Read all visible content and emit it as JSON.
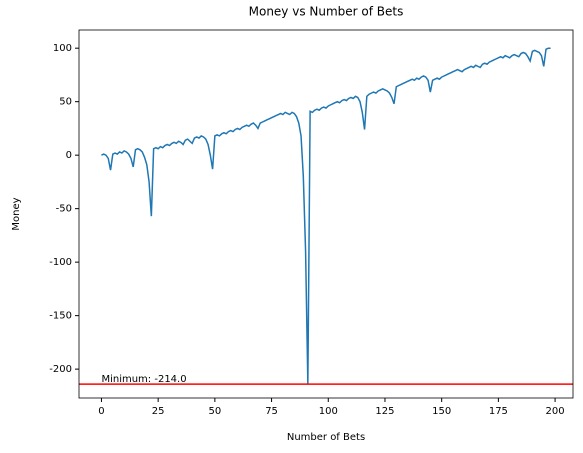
{
  "chart_data": {
    "type": "line",
    "title": "Money vs Number of Bets",
    "xlabel": "Number of Bets",
    "ylabel": "Money",
    "x": [
      0,
      1,
      2,
      3,
      4,
      5,
      6,
      7,
      8,
      9,
      10,
      11,
      12,
      13,
      14,
      15,
      16,
      17,
      18,
      19,
      20,
      21,
      22,
      23,
      24,
      25,
      26,
      27,
      28,
      29,
      30,
      31,
      32,
      33,
      34,
      35,
      36,
      37,
      38,
      39,
      40,
      41,
      42,
      43,
      44,
      45,
      46,
      47,
      48,
      49,
      50,
      51,
      52,
      53,
      54,
      55,
      56,
      57,
      58,
      59,
      60,
      61,
      62,
      63,
      64,
      65,
      66,
      67,
      68,
      69,
      70,
      71,
      72,
      73,
      74,
      75,
      76,
      77,
      78,
      79,
      80,
      81,
      82,
      83,
      84,
      85,
      86,
      87,
      88,
      89,
      90,
      91,
      92,
      93,
      94,
      95,
      96,
      97,
      98,
      99,
      100,
      101,
      102,
      103,
      104,
      105,
      106,
      107,
      108,
      109,
      110,
      111,
      112,
      113,
      114,
      115,
      116,
      117,
      118,
      119,
      120,
      121,
      122,
      123,
      124,
      125,
      126,
      127,
      128,
      129,
      130,
      131,
      132,
      133,
      134,
      135,
      136,
      137,
      138,
      139,
      140,
      141,
      142,
      143,
      144,
      145,
      146,
      147,
      148,
      149,
      150,
      151,
      152,
      153,
      154,
      155,
      156,
      157,
      158,
      159,
      160,
      161,
      162,
      163,
      164,
      165,
      166,
      167,
      168,
      169,
      170,
      171,
      172,
      173,
      174,
      175,
      176,
      177,
      178,
      179,
      180,
      181,
      182,
      183,
      184,
      185,
      186,
      187,
      188,
      189,
      190,
      191,
      192,
      193,
      194,
      195,
      196,
      197,
      198
    ],
    "series": [
      {
        "name": "Money",
        "color": "#1f77b4",
        "values": [
          0,
          1,
          0,
          -3,
          -14,
          1,
          2,
          1,
          3,
          2,
          4,
          3,
          1,
          -3,
          -11,
          5,
          6,
          5,
          3,
          -2,
          -9,
          -25,
          -57,
          6,
          7,
          6,
          8,
          7,
          9,
          10,
          9,
          11,
          12,
          11,
          13,
          12,
          10,
          14,
          15,
          13,
          11,
          16,
          17,
          16,
          18,
          17,
          15,
          10,
          0,
          -13,
          18,
          19,
          18,
          20,
          21,
          20,
          22,
          23,
          22,
          24,
          25,
          24,
          26,
          27,
          28,
          27,
          29,
          30,
          28,
          25,
          30,
          31,
          32,
          33,
          34,
          35,
          36,
          37,
          38,
          39,
          38,
          40,
          39,
          38,
          40,
          39,
          36,
          30,
          18,
          -20,
          -90,
          -214,
          41,
          40,
          42,
          43,
          42,
          44,
          45,
          44,
          46,
          47,
          48,
          49,
          50,
          49,
          51,
          52,
          51,
          53,
          54,
          53,
          55,
          54,
          50,
          40,
          24,
          55,
          57,
          58,
          59,
          58,
          60,
          61,
          62,
          61,
          60,
          58,
          54,
          48,
          64,
          65,
          66,
          67,
          68,
          69,
          70,
          71,
          70,
          72,
          71,
          73,
          74,
          73,
          70,
          59,
          70,
          71,
          72,
          71,
          73,
          74,
          75,
          76,
          77,
          78,
          79,
          80,
          79,
          78,
          80,
          81,
          82,
          83,
          82,
          84,
          83,
          82,
          85,
          86,
          85,
          87,
          88,
          89,
          90,
          91,
          92,
          91,
          93,
          92,
          91,
          93,
          94,
          93,
          92,
          95,
          96,
          95,
          92,
          88,
          97,
          98,
          97,
          96,
          93,
          83,
          99,
          100,
          100
        ]
      }
    ],
    "hline": {
      "value": -214,
      "color": "#ff0000"
    },
    "annotation": "Minimum: -214.0",
    "xlim": [
      -9.9,
      207.9
    ],
    "xticks": [
      0,
      25,
      50,
      75,
      100,
      125,
      150,
      175,
      200
    ],
    "ylim": [
      -227,
      117
    ],
    "yticks": [
      -200,
      -150,
      -100,
      -50,
      0,
      50,
      100
    ]
  }
}
